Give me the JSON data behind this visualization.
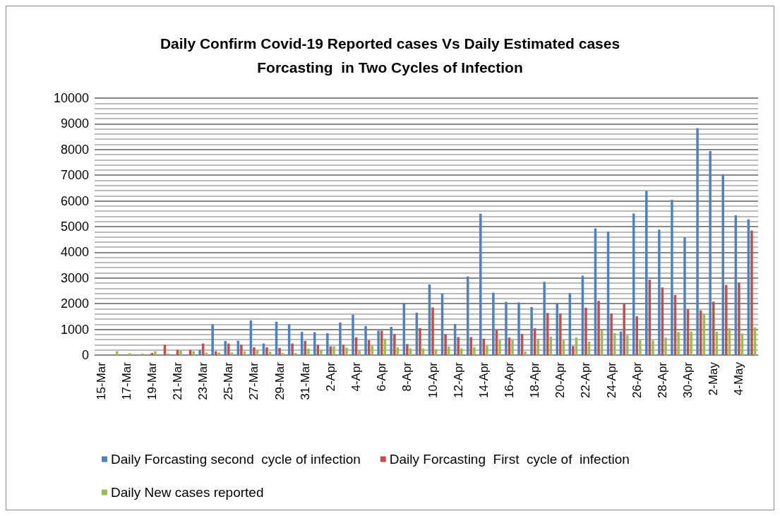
{
  "chart_data": {
    "type": "bar",
    "title": "Daily Confirm Covid-19 Reported cases Vs Daily Estimated cases\nForcasting  in Two Cycles of Infection",
    "categories": [
      "15-Mar",
      null,
      "17-Mar",
      null,
      "19-Mar",
      null,
      "21-Mar",
      null,
      "23-Mar",
      null,
      "25-Mar",
      null,
      "27-Mar",
      null,
      "29-Mar",
      null,
      "31-Mar",
      null,
      "2-Apr",
      null,
      "4-Apr",
      null,
      "6-Apr",
      null,
      "8-Apr",
      null,
      "10-Apr",
      null,
      "12-Apr",
      null,
      "14-Apr",
      null,
      "16-Apr",
      null,
      "18-Apr",
      null,
      "20-Apr",
      null,
      "22-Apr",
      null,
      "24-Apr",
      null,
      "26-Apr",
      null,
      "28-Apr",
      null,
      "30-Apr",
      null,
      "2-May",
      null,
      "4-May",
      null
    ],
    "series": [
      {
        "name": "Daily Forcasting second  cycle of infection",
        "color": "#4f81bd",
        "values": [
          0,
          0,
          0,
          0,
          0,
          0,
          0,
          0,
          200,
          1200,
          550,
          560,
          1350,
          450,
          1300,
          1200,
          900,
          890,
          850,
          1270,
          1570,
          1130,
          950,
          1100,
          2020,
          1650,
          2750,
          2400,
          1210,
          3060,
          5500,
          2430,
          2070,
          2050,
          1870,
          2850,
          2000,
          2410,
          3090,
          4930,
          4810,
          920,
          5510,
          6390,
          4880,
          6040,
          4580,
          8830,
          7940,
          7040,
          5440,
          5280
        ]
      },
      {
        "name": "Daily Forcasting  First  cycle of  infection",
        "color": "#c0504d",
        "values": [
          0,
          0,
          0,
          0,
          80,
          400,
          200,
          200,
          450,
          150,
          450,
          400,
          300,
          300,
          280,
          450,
          550,
          400,
          340,
          400,
          690,
          580,
          950,
          820,
          430,
          1050,
          1850,
          820,
          700,
          700,
          640,
          970,
          680,
          820,
          1040,
          1640,
          1620,
          350,
          1840,
          2110,
          1620,
          2000,
          1510,
          2930,
          2630,
          2340,
          1790,
          1740,
          2080,
          2730,
          2820,
          4850
        ]
      },
      {
        "name": "Daily New cases reported",
        "color": "#9bbb59",
        "values": [
          0,
          150,
          70,
          60,
          150,
          60,
          180,
          150,
          100,
          100,
          100,
          150,
          200,
          130,
          80,
          80,
          250,
          200,
          340,
          290,
          170,
          370,
          640,
          300,
          260,
          260,
          230,
          330,
          260,
          310,
          370,
          580,
          580,
          140,
          640,
          720,
          580,
          690,
          520,
          970,
          860,
          770,
          590,
          570,
          680,
          900,
          920,
          1600,
          910,
          1050,
          840,
          1080
        ]
      }
    ],
    "ylim": [
      0,
      10000
    ],
    "yticks": [
      0,
      1000,
      2000,
      3000,
      4000,
      5000,
      6000,
      7000,
      8000,
      9000,
      10000
    ],
    "grid": "y",
    "legend": "bottom"
  }
}
